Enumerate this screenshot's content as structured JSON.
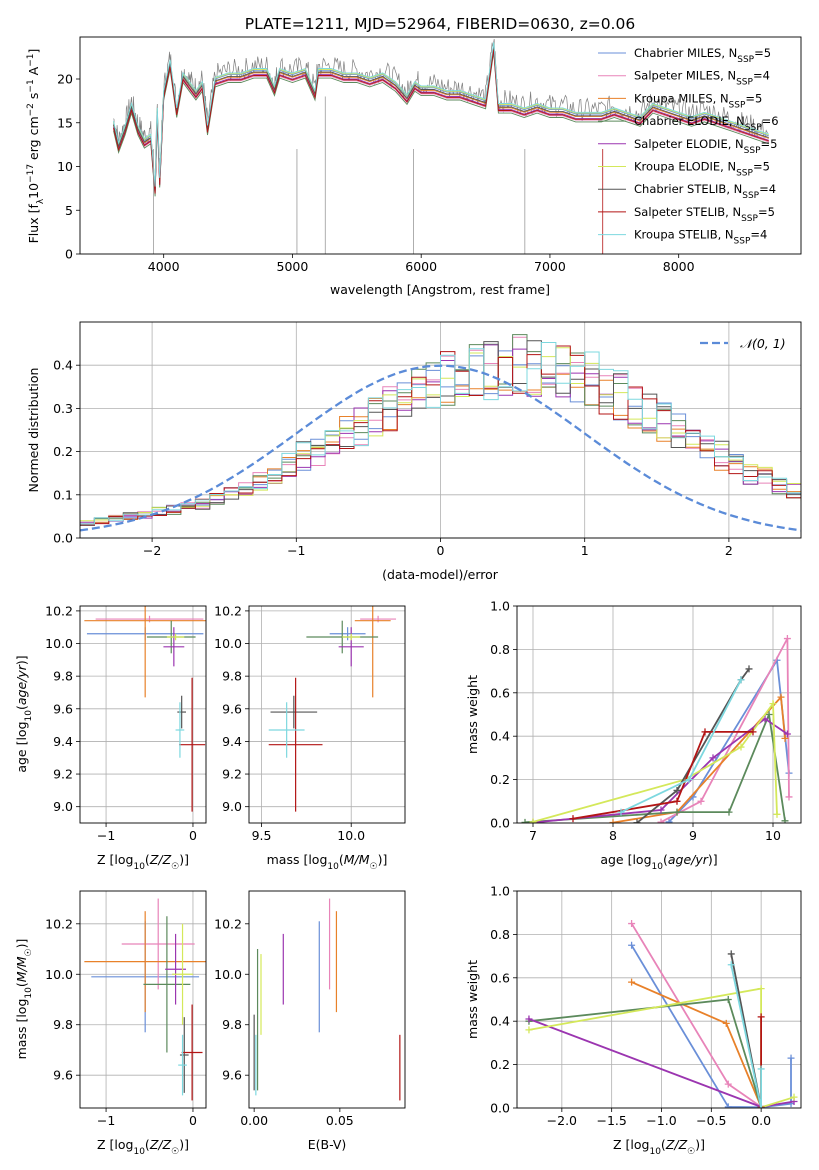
{
  "figure": {
    "title": "PLATE=1211, MJD=52964, FIBERID=0630, z=0.06"
  },
  "chart_data": [
    {
      "id": "spectrum",
      "type": "line",
      "xlabel": "wavelength [Angstrom, rest frame]",
      "ylabel": "Flux [f_λ10^-17 erg cm^-2 s^-1 A^-1]",
      "xlim": [
        3350,
        8950
      ],
      "ylim": [
        0,
        24.8
      ],
      "xticks": [
        4000,
        5000,
        6000,
        7000,
        8000
      ],
      "yticks": [
        0,
        5,
        10,
        15,
        20
      ],
      "legend_position": "top-right",
      "data_color": "#7f7f7f",
      "data_line": {
        "x": [
          3610,
          3650,
          3700,
          3750,
          3800,
          3850,
          3900,
          3933,
          3950,
          3969,
          4000,
          4050,
          4101,
          4150,
          4200,
          4250,
          4300,
          4340,
          4400,
          4500,
          4600,
          4700,
          4800,
          4861,
          4900,
          5000,
          5100,
          5175,
          5200,
          5300,
          5400,
          5500,
          5600,
          5700,
          5800,
          5890,
          5950,
          6000,
          6100,
          6200,
          6300,
          6400,
          6500,
          6563,
          6600,
          6700,
          6800,
          6900,
          7000,
          7100,
          7200,
          7300,
          7400,
          7500,
          7600,
          7700,
          7800,
          7900,
          8000,
          8100,
          8200,
          8300,
          8400,
          8500,
          8600,
          8700
        ],
        "y": [
          15.5,
          13.0,
          15.0,
          17.5,
          15.0,
          13.5,
          14.0,
          8.0,
          17.0,
          9.0,
          19.0,
          22.5,
          17.0,
          21.0,
          20.0,
          19.0,
          20.0,
          15.0,
          20.5,
          21.0,
          21.0,
          21.5,
          21.5,
          19.5,
          21.5,
          21.0,
          21.5,
          19.0,
          21.5,
          21.5,
          21.0,
          21.0,
          20.5,
          21.0,
          20.0,
          18.5,
          20.0,
          19.5,
          19.5,
          19.0,
          19.0,
          18.5,
          18.0,
          24.5,
          17.5,
          17.5,
          17.0,
          17.5,
          17.0,
          17.0,
          16.5,
          16.5,
          16.5,
          17.0,
          16.5,
          16.0,
          17.5,
          17.0,
          16.5,
          16.0,
          16.5,
          16.0,
          15.5,
          15.0,
          14.5,
          14.0
        ]
      },
      "model_offsets": [
        0.3,
        -0.4,
        0.0,
        -0.6,
        -0.2,
        0.4,
        0.1,
        -0.3,
        0.5
      ],
      "series": [
        {
          "label": "Chabrier MILES, N",
          "sub": "SSP",
          "n": "5",
          "color": "#6a8fd8"
        },
        {
          "label": "Salpeter MILES, N",
          "sub": "SSP",
          "n": "4",
          "color": "#e884b9"
        },
        {
          "label": "Kroupa MILES, N",
          "sub": "SSP",
          "n": "5",
          "color": "#e8812a"
        },
        {
          "label": "Chabrier ELODIE, N",
          "sub": "SSP",
          "n": "6",
          "color": "#5c8a5c"
        },
        {
          "label": "Salpeter ELODIE, N",
          "sub": "SSP",
          "n": "5",
          "color": "#9b35b0"
        },
        {
          "label": "Kroupa ELODIE, N",
          "sub": "SSP",
          "n": "5",
          "color": "#d4e85a"
        },
        {
          "label": "Chabrier STELIB, N",
          "sub": "SSP",
          "n": "4",
          "color": "#555555"
        },
        {
          "label": "Salpeter STELIB, N",
          "sub": "SSP",
          "n": "5",
          "color": "#b31515"
        },
        {
          "label": "Kroupa STELIB, N",
          "sub": "SSP",
          "n": "4",
          "color": "#7dd8df"
        }
      ]
    },
    {
      "id": "residuals",
      "type": "step",
      "xlabel": "(data-model)/error",
      "ylabel": "Normed distribution",
      "xlim": [
        -2.5,
        2.5
      ],
      "ylim": [
        0,
        0.5
      ],
      "xticks": [
        -2,
        -1,
        0,
        1,
        2
      ],
      "yticks": [
        0.0,
        0.1,
        0.2,
        0.3,
        0.4
      ],
      "grid": true,
      "legend_position": "top-right",
      "legend_label": "𝒩(0, 1)",
      "bin_width": 0.1,
      "bins_start": -2.5,
      "profile": [
        0.035,
        0.04,
        0.045,
        0.05,
        0.055,
        0.06,
        0.065,
        0.07,
        0.08,
        0.09,
        0.1,
        0.11,
        0.13,
        0.15,
        0.17,
        0.19,
        0.2,
        0.22,
        0.24,
        0.26,
        0.28,
        0.3,
        0.32,
        0.34,
        0.35,
        0.37,
        0.38,
        0.39,
        0.39,
        0.4,
        0.4,
        0.4,
        0.39,
        0.39,
        0.38,
        0.37,
        0.35,
        0.33,
        0.31,
        0.29,
        0.27,
        0.25,
        0.23,
        0.21,
        0.19,
        0.17,
        0.15,
        0.14,
        0.12,
        0.11,
        0.1
      ]
    },
    {
      "id": "age-vs-Z",
      "type": "errorbar",
      "xlabel": "Z [log10(Z/Z☉)]",
      "ylabel": "age [log10(age/yr)]",
      "xlim": [
        -1.3,
        0.15
      ],
      "ylim": [
        8.9,
        10.23
      ],
      "xticks": [
        -1,
        0
      ],
      "yticks": [
        9.0,
        9.2,
        9.4,
        9.6,
        9.8,
        10.0,
        10.2
      ],
      "grid": true,
      "points": [
        {
          "x": -0.55,
          "xerr": 0.67,
          "y": 10.06,
          "yerr": 0.04,
          "color": "#6a8fd8"
        },
        {
          "x": -0.5,
          "xerr": 0.62,
          "y": 10.15,
          "yerr": 0.02,
          "color": "#e884b9"
        },
        {
          "x": -0.55,
          "xerr": 0.7,
          "y": 10.14,
          "yerr": 0.47,
          "color": "#e8812a"
        },
        {
          "x": -0.25,
          "xerr": 0.28,
          "y": 10.04,
          "yerr": 0.1,
          "color": "#5c8a5c"
        },
        {
          "x": -0.22,
          "xerr": 0.12,
          "y": 9.98,
          "yerr": 0.12,
          "color": "#9b35b0"
        },
        {
          "x": -0.2,
          "xerr": 0.1,
          "y": 10.04,
          "yerr": 0.02,
          "color": "#d4e85a"
        },
        {
          "x": -0.13,
          "xerr": 0.05,
          "y": 9.58,
          "yerr": 0.1,
          "color": "#555555"
        },
        {
          "x": -0.01,
          "xerr": 0.15,
          "y": 9.38,
          "yerr": 0.41,
          "color": "#b31515"
        },
        {
          "x": -0.15,
          "xerr": 0.05,
          "y": 9.47,
          "yerr": 0.17,
          "color": "#7dd8df"
        }
      ]
    },
    {
      "id": "age-vs-mass",
      "type": "errorbar",
      "xlabel": "mass [log10(M/M☉)]",
      "ylabel": "",
      "xlim": [
        9.43,
        10.3
      ],
      "ylim": [
        8.9,
        10.23
      ],
      "xticks": [
        9.5,
        10.0
      ],
      "yticks": [
        9.0,
        9.2,
        9.4,
        9.6,
        9.8,
        10.0,
        10.2
      ],
      "grid": true,
      "points": [
        {
          "x": 9.98,
          "xerr": 0.1,
          "y": 10.06,
          "yerr": 0.04,
          "color": "#6a8fd8"
        },
        {
          "x": 10.15,
          "xerr": 0.1,
          "y": 10.15,
          "yerr": 0.02,
          "color": "#e884b9"
        },
        {
          "x": 10.12,
          "xerr": 0.1,
          "y": 10.14,
          "yerr": 0.47,
          "color": "#e8812a"
        },
        {
          "x": 9.95,
          "xerr": 0.2,
          "y": 10.04,
          "yerr": 0.1,
          "color": "#5c8a5c"
        },
        {
          "x": 10.0,
          "xerr": 0.07,
          "y": 9.98,
          "yerr": 0.12,
          "color": "#9b35b0"
        },
        {
          "x": 10.0,
          "xerr": 0.05,
          "y": 10.04,
          "yerr": 0.02,
          "color": "#d4e85a"
        },
        {
          "x": 9.68,
          "xerr": 0.13,
          "y": 9.58,
          "yerr": 0.1,
          "color": "#555555"
        },
        {
          "x": 9.69,
          "xerr": 0.15,
          "y": 9.38,
          "yerr": 0.41,
          "color": "#b31515"
        },
        {
          "x": 9.64,
          "xerr": 0.1,
          "y": 9.47,
          "yerr": 0.17,
          "color": "#7dd8df"
        }
      ]
    },
    {
      "id": "weight-vs-age",
      "type": "line",
      "xlabel": "age [log10(age/yr)]",
      "ylabel": "mass weight",
      "xlim": [
        6.8,
        10.35
      ],
      "ylim": [
        0,
        1.0
      ],
      "xticks": [
        7,
        8,
        9,
        10
      ],
      "yticks": [
        0.0,
        0.2,
        0.4,
        0.6,
        0.8,
        1.0
      ],
      "grid": true,
      "series": [
        {
          "color": "#6a8fd8",
          "x": [
            8.7,
            9.0,
            10.05,
            10.2
          ],
          "y": [
            0.005,
            0.12,
            0.75,
            0.23
          ]
        },
        {
          "color": "#e884b9",
          "x": [
            8.6,
            9.1,
            10.18,
            10.2
          ],
          "y": [
            0.004,
            0.1,
            0.85,
            0.12
          ]
        },
        {
          "color": "#e8812a",
          "x": [
            8.0,
            8.8,
            10.1,
            10.15
          ],
          "y": [
            0.002,
            0.05,
            0.58,
            0.39
          ]
        },
        {
          "color": "#5c8a5c",
          "x": [
            6.9,
            8.8,
            9.45,
            9.95,
            10.15
          ],
          "y": [
            0.003,
            0.05,
            0.05,
            0.5,
            0.01
          ]
        },
        {
          "color": "#9b35b0",
          "x": [
            7.0,
            8.6,
            9.25,
            9.9,
            10.18
          ],
          "y": [
            0.002,
            0.06,
            0.3,
            0.48,
            0.41
          ]
        },
        {
          "color": "#d4e85a",
          "x": [
            7.0,
            8.9,
            9.6,
            10.0,
            10.05
          ],
          "y": [
            0.005,
            0.2,
            0.35,
            0.55,
            0.04
          ]
        },
        {
          "color": "#555555",
          "x": [
            8.3,
            8.8,
            9.6,
            9.7
          ],
          "y": [
            0.001,
            0.15,
            0.66,
            0.71
          ]
        },
        {
          "color": "#b31515",
          "x": [
            7.5,
            8.8,
            9.15,
            9.75
          ],
          "y": [
            0.02,
            0.1,
            0.42,
            0.42
          ]
        },
        {
          "color": "#7dd8df",
          "x": [
            8.1,
            8.95,
            9.6
          ],
          "y": [
            0.05,
            0.2,
            0.66
          ]
        }
      ]
    },
    {
      "id": "mass-vs-Z",
      "type": "errorbar",
      "xlabel": "Z [log10(Z/Z☉)]",
      "ylabel": "mass [log10(M/M☉)]",
      "xlim": [
        -1.3,
        0.15
      ],
      "ylim": [
        9.47,
        10.33
      ],
      "xticks": [
        -1,
        0
      ],
      "yticks": [
        9.6,
        9.8,
        10.0,
        10.2
      ],
      "grid": true,
      "points": [
        {
          "x": -0.55,
          "xerr": 0.62,
          "y": 9.99,
          "yerr": 0.22,
          "color": "#6a8fd8"
        },
        {
          "x": -0.4,
          "xerr": 0.42,
          "y": 10.12,
          "yerr": 0.18,
          "color": "#e884b9"
        },
        {
          "x": -0.55,
          "xerr": 0.7,
          "y": 10.05,
          "yerr": 0.2,
          "color": "#e8812a"
        },
        {
          "x": -0.3,
          "xerr": 0.27,
          "y": 9.96,
          "yerr": 0.27,
          "color": "#5c8a5c"
        },
        {
          "x": -0.2,
          "xerr": 0.12,
          "y": 10.02,
          "yerr": 0.14,
          "color": "#9b35b0"
        },
        {
          "x": -0.12,
          "xerr": 0.12,
          "y": 10.0,
          "yerr": 0.2,
          "color": "#d4e85a"
        },
        {
          "x": -0.1,
          "xerr": 0.05,
          "y": 9.68,
          "yerr": 0.15,
          "color": "#555555"
        },
        {
          "x": -0.01,
          "xerr": 0.12,
          "y": 9.69,
          "yerr": 0.19,
          "color": "#b31515"
        },
        {
          "x": -0.12,
          "xerr": 0.05,
          "y": 9.64,
          "yerr": 0.12,
          "color": "#7dd8df"
        }
      ]
    },
    {
      "id": "mass-vs-EBV",
      "type": "errorbar",
      "xlabel": "E(B-V)",
      "ylabel": "",
      "xlim": [
        -0.003,
        0.088
      ],
      "ylim": [
        9.47,
        10.33
      ],
      "xticks": [
        0.0,
        0.05
      ],
      "yticks": [
        9.6,
        9.8,
        10.0,
        10.2
      ],
      "grid": false,
      "points": [
        {
          "x": 0.038,
          "y": 9.99,
          "yerr": 0.22,
          "color": "#6a8fd8"
        },
        {
          "x": 0.044,
          "y": 10.12,
          "yerr": 0.18,
          "color": "#e884b9"
        },
        {
          "x": 0.048,
          "y": 10.05,
          "yerr": 0.2,
          "color": "#e8812a"
        },
        {
          "x": 0.002,
          "y": 9.82,
          "yerr": 0.28,
          "color": "#5c8a5c"
        },
        {
          "x": 0.017,
          "y": 10.02,
          "yerr": 0.14,
          "color": "#9b35b0"
        },
        {
          "x": 0.004,
          "y": 9.92,
          "yerr": 0.16,
          "color": "#d4e85a"
        },
        {
          "x": 0.0,
          "y": 9.69,
          "yerr": 0.15,
          "color": "#555555"
        },
        {
          "x": 0.085,
          "y": 9.63,
          "yerr": 0.13,
          "color": "#b31515"
        },
        {
          "x": 0.001,
          "y": 9.64,
          "yerr": 0.12,
          "color": "#7dd8df"
        }
      ]
    },
    {
      "id": "weight-vs-Z",
      "type": "line",
      "xlabel": "Z [log10(Z/Z☉)]",
      "ylabel": "mass weight",
      "xlim": [
        -2.45,
        0.4
      ],
      "ylim": [
        0,
        1.0
      ],
      "xticks": [
        -2.0,
        -1.5,
        -1.0,
        -0.5,
        0.0
      ],
      "yticks": [
        0.0,
        0.2,
        0.4,
        0.6,
        0.8,
        1.0
      ],
      "grid": true,
      "series": [
        {
          "color": "#6a8fd8",
          "x": [
            -1.3,
            -0.33,
            0.0,
            0.3,
            0.3
          ],
          "y": [
            0.75,
            0.005,
            0.003,
            0.02,
            0.23
          ]
        },
        {
          "color": "#e884b9",
          "x": [
            -1.3,
            -0.33,
            0.0
          ],
          "y": [
            0.85,
            0.11,
            0.005
          ]
        },
        {
          "color": "#e8812a",
          "x": [
            -1.3,
            -0.35,
            0.0
          ],
          "y": [
            0.58,
            0.39,
            0.005
          ]
        },
        {
          "color": "#5c8a5c",
          "x": [
            -2.33,
            -0.33,
            0.0
          ],
          "y": [
            0.4,
            0.5,
            0.003
          ]
        },
        {
          "color": "#9b35b0",
          "x": [
            -2.33,
            0.0,
            0.33
          ],
          "y": [
            0.41,
            0.005,
            0.03
          ]
        },
        {
          "color": "#d4e85a",
          "x": [
            -2.33,
            0.0,
            0.0,
            0.33
          ],
          "y": [
            0.36,
            0.55,
            0.003,
            0.05
          ]
        },
        {
          "color": "#555555",
          "x": [
            -0.3,
            0.0
          ],
          "y": [
            0.71,
            0.003
          ]
        },
        {
          "color": "#b31515",
          "x": [
            0.0,
            0.0
          ],
          "y": [
            0.42,
            0.003
          ]
        },
        {
          "color": "#7dd8df",
          "x": [
            -0.3,
            0.0,
            0.0
          ],
          "y": [
            0.66,
            0.0,
            0.18
          ]
        }
      ]
    }
  ]
}
